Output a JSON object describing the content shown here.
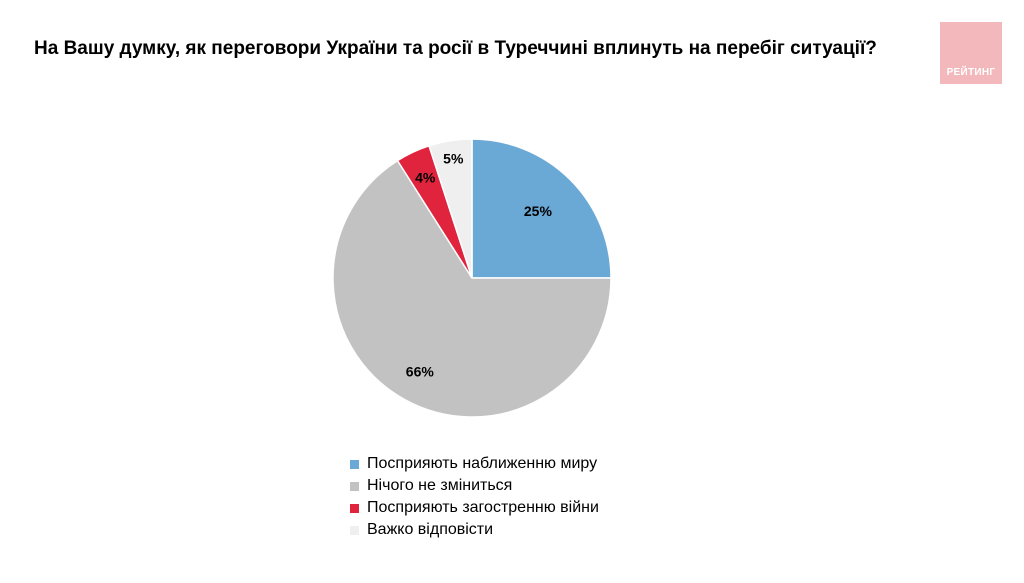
{
  "header": {
    "title": "На Вашу думку, як переговори України та росії в Туреччині вплинуть на перебіг ситуації?"
  },
  "logo": {
    "text": "РЕЙТИНГ",
    "color": "#f2b8bb"
  },
  "chart_data": {
    "type": "pie",
    "title": "На Вашу думку, як переговори України та росії в Туреччині вплинуть на перебіг ситуації?",
    "start_angle_deg": 0,
    "direction": "clockwise",
    "legend_position": "bottom",
    "slices": [
      {
        "name": "Посприяють наближенню миру",
        "value": 25,
        "label": "25%",
        "color": "#6aa8d6"
      },
      {
        "name": "Нічого не зміниться",
        "value": 66,
        "label": "66%",
        "color": "#c2c2c2"
      },
      {
        "name": "Посприяють загостренню війни",
        "value": 4,
        "label": "4%",
        "color": "#e0243e"
      },
      {
        "name": "Важко відповісти",
        "value": 5,
        "label": "5%",
        "color": "#efefef"
      }
    ]
  }
}
